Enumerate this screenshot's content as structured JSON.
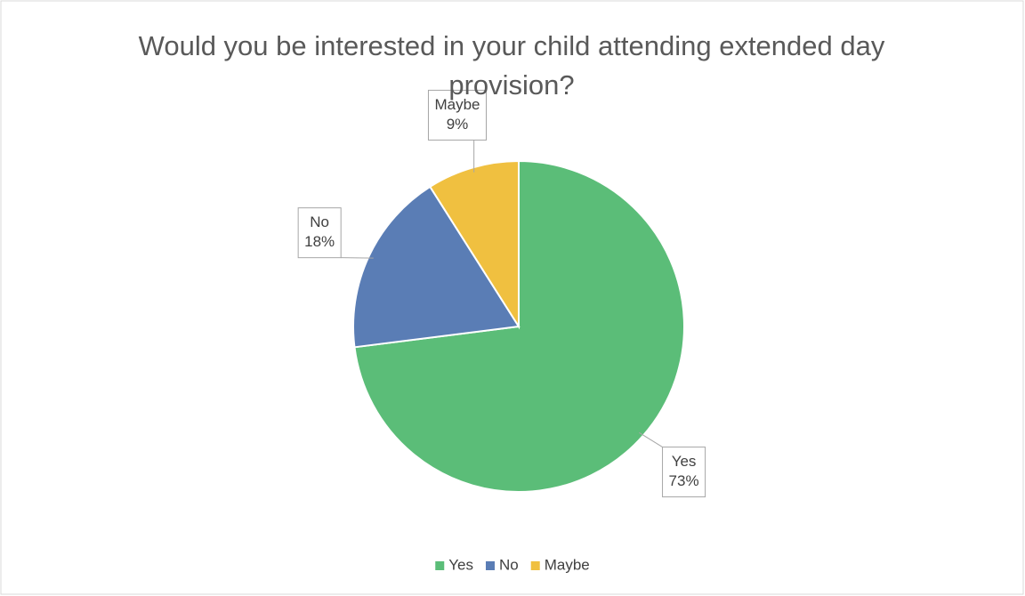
{
  "chart_data": {
    "type": "pie",
    "title": "Would you be interested in your child attending extended day provision?",
    "categories": [
      "Yes",
      "No",
      "Maybe"
    ],
    "values": [
      73,
      18,
      9
    ],
    "value_labels": [
      "73%",
      "18%",
      "9%"
    ],
    "colors": [
      "#5bbd78",
      "#5a7db5",
      "#f0c040"
    ],
    "legend": "bottom"
  }
}
